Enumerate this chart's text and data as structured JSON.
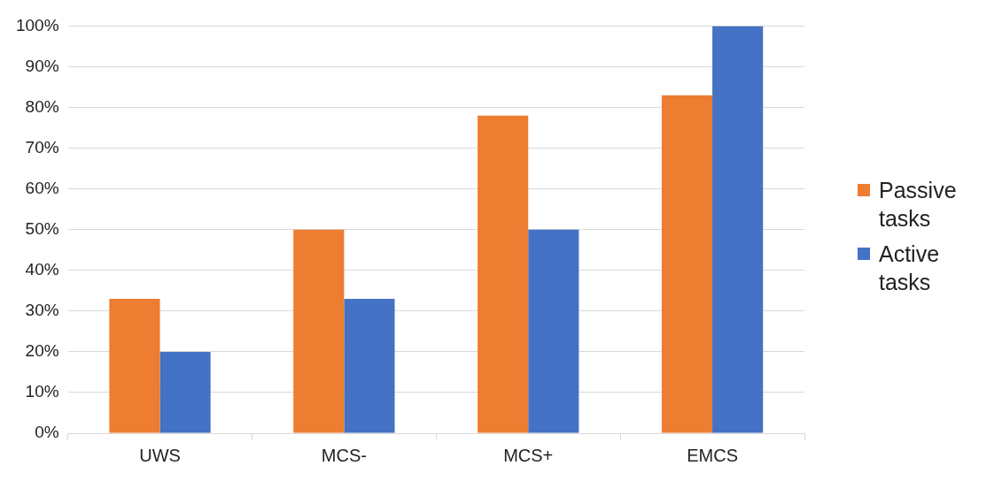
{
  "chart_data": {
    "type": "bar",
    "categories": [
      "UWS",
      "MCS-",
      "MCS+",
      "EMCS"
    ],
    "series": [
      {
        "name": "Passive tasks",
        "color": "#ed7d31",
        "values": [
          33,
          50,
          78,
          83
        ]
      },
      {
        "name": "Active tasks",
        "color": "#4472c4",
        "values": [
          20,
          33,
          50,
          100
        ]
      }
    ],
    "ylim": [
      0,
      100
    ],
    "yticks": [
      {
        "value": 0,
        "label": "0%"
      },
      {
        "value": 10,
        "label": "10%"
      },
      {
        "value": 20,
        "label": "20%"
      },
      {
        "value": 30,
        "label": "30%"
      },
      {
        "value": 40,
        "label": "40%"
      },
      {
        "value": 50,
        "label": "50%"
      },
      {
        "value": 60,
        "label": "60%"
      },
      {
        "value": 70,
        "label": "70%"
      },
      {
        "value": 80,
        "label": "80%"
      },
      {
        "value": 90,
        "label": "90%"
      },
      {
        "value": 100,
        "label": "100%"
      }
    ],
    "grid": "y",
    "legend": "right"
  }
}
